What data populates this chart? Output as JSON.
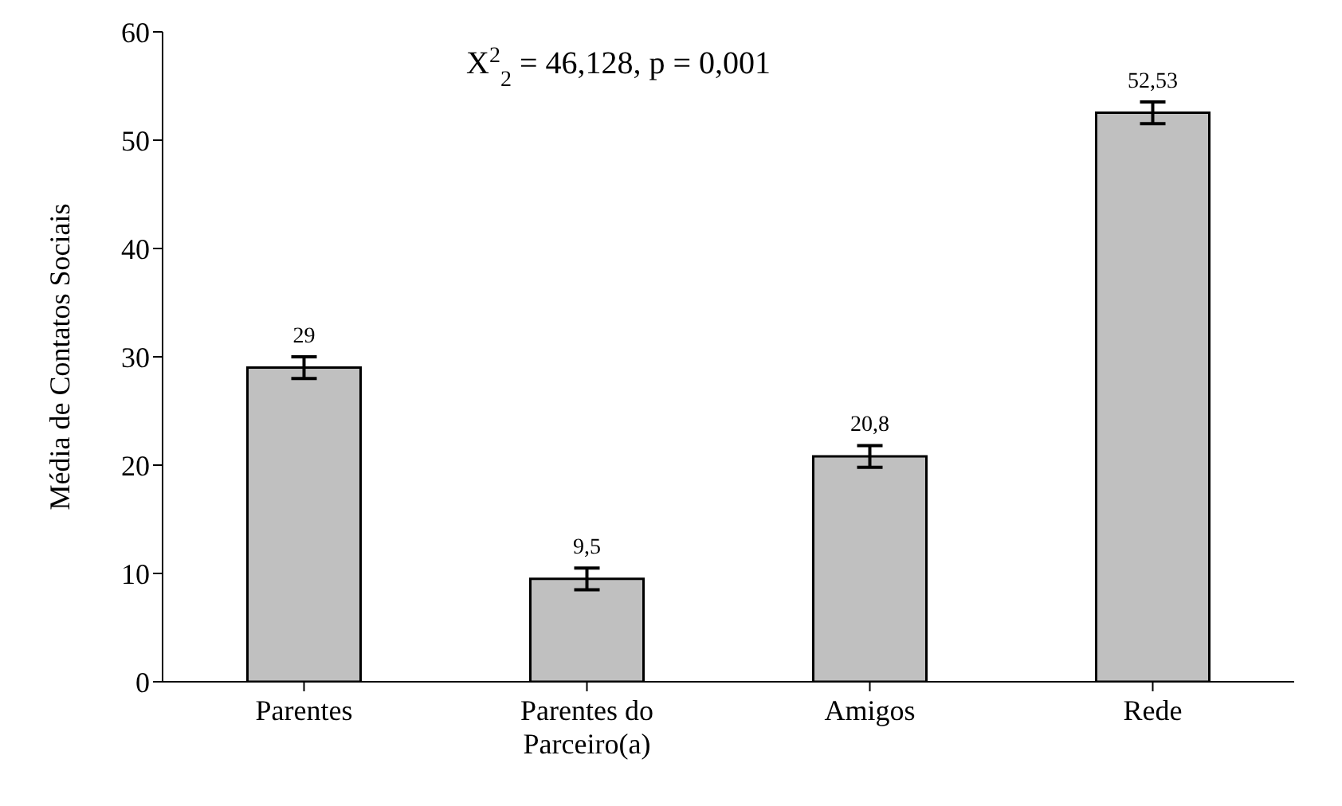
{
  "chart_data": {
    "type": "bar",
    "ylabel": "Média de Contatos Sociais",
    "annotations": [
      "X$^{2}$$_{2}$ = 46,128, p = 0,001"
    ],
    "categories": [
      "Parentes",
      "Parentes do Parceiro(a)",
      "Amigos",
      "Rede"
    ],
    "values": [
      29,
      9.5,
      20.8,
      52.53
    ],
    "value_labels": [
      "29",
      "9,5",
      "20,8",
      "52,53"
    ],
    "errors": [
      1,
      1,
      1,
      1
    ],
    "color": "#c0c0c0",
    "ylim": [
      0,
      60
    ],
    "yticks": [
      0,
      10,
      20,
      30,
      40,
      50,
      60
    ]
  }
}
